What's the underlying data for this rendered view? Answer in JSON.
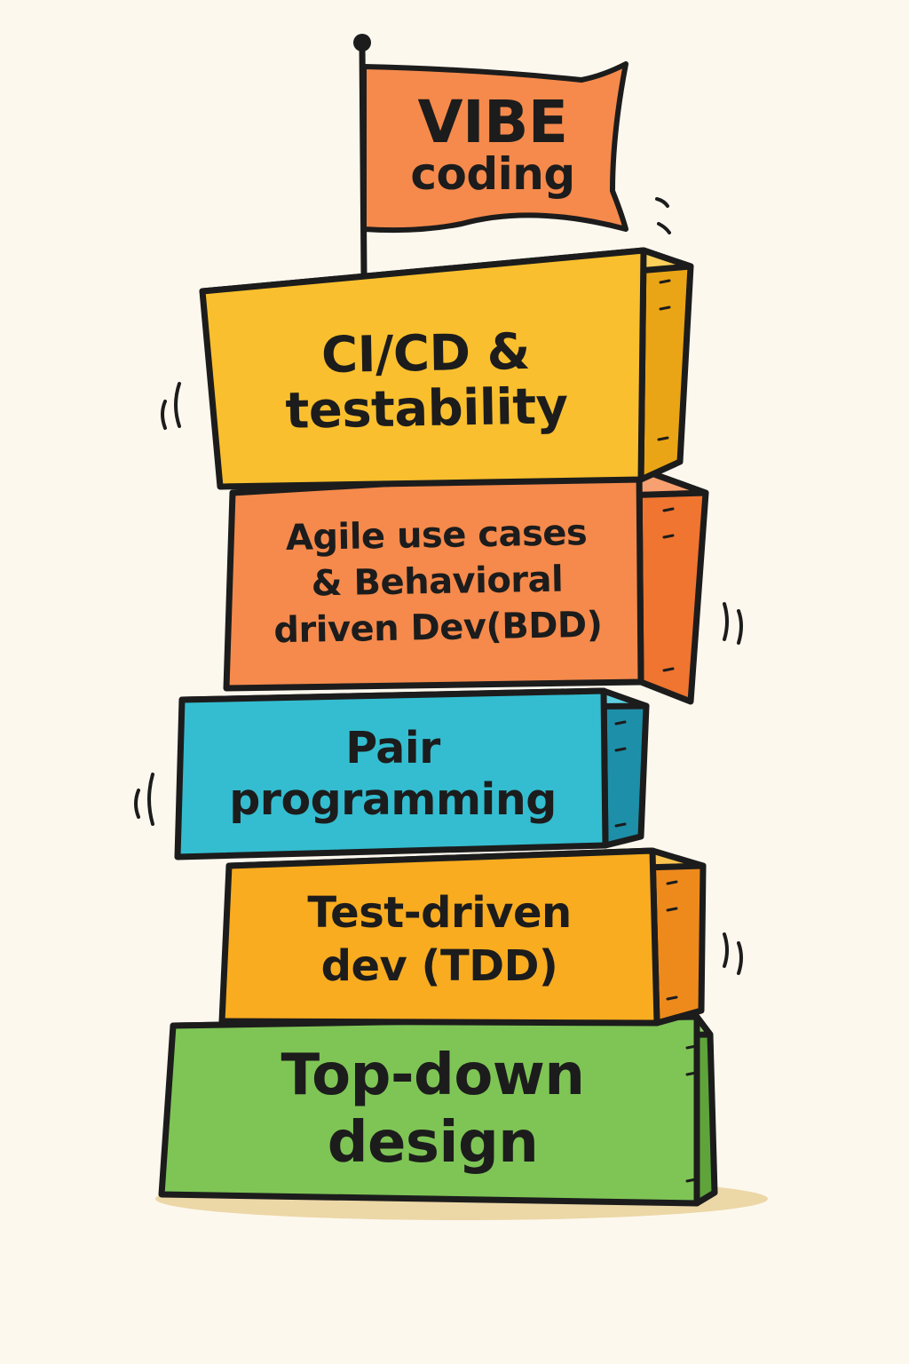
{
  "flag": {
    "line1": "VIBE",
    "line2": "coding"
  },
  "blocks": [
    {
      "label": "CI/CD &\ntestability",
      "color": "#f9bf2e"
    },
    {
      "label": "Agile use cases\n& Behavioral\ndriven Dev(BDD)",
      "color": "#f58a4c"
    },
    {
      "label": "Pair\nprogramming",
      "color": "#34bdd0"
    },
    {
      "label": "Test-driven\ndev (TDD)",
      "color": "#f9ac20"
    },
    {
      "label": "Top-down\ndesign",
      "color": "#7fc556"
    }
  ],
  "colors": {
    "flag": "#f58a4c",
    "outline": "#1c1c1c",
    "background": "#fdf8ee",
    "shadow": "#ecd7a6"
  }
}
